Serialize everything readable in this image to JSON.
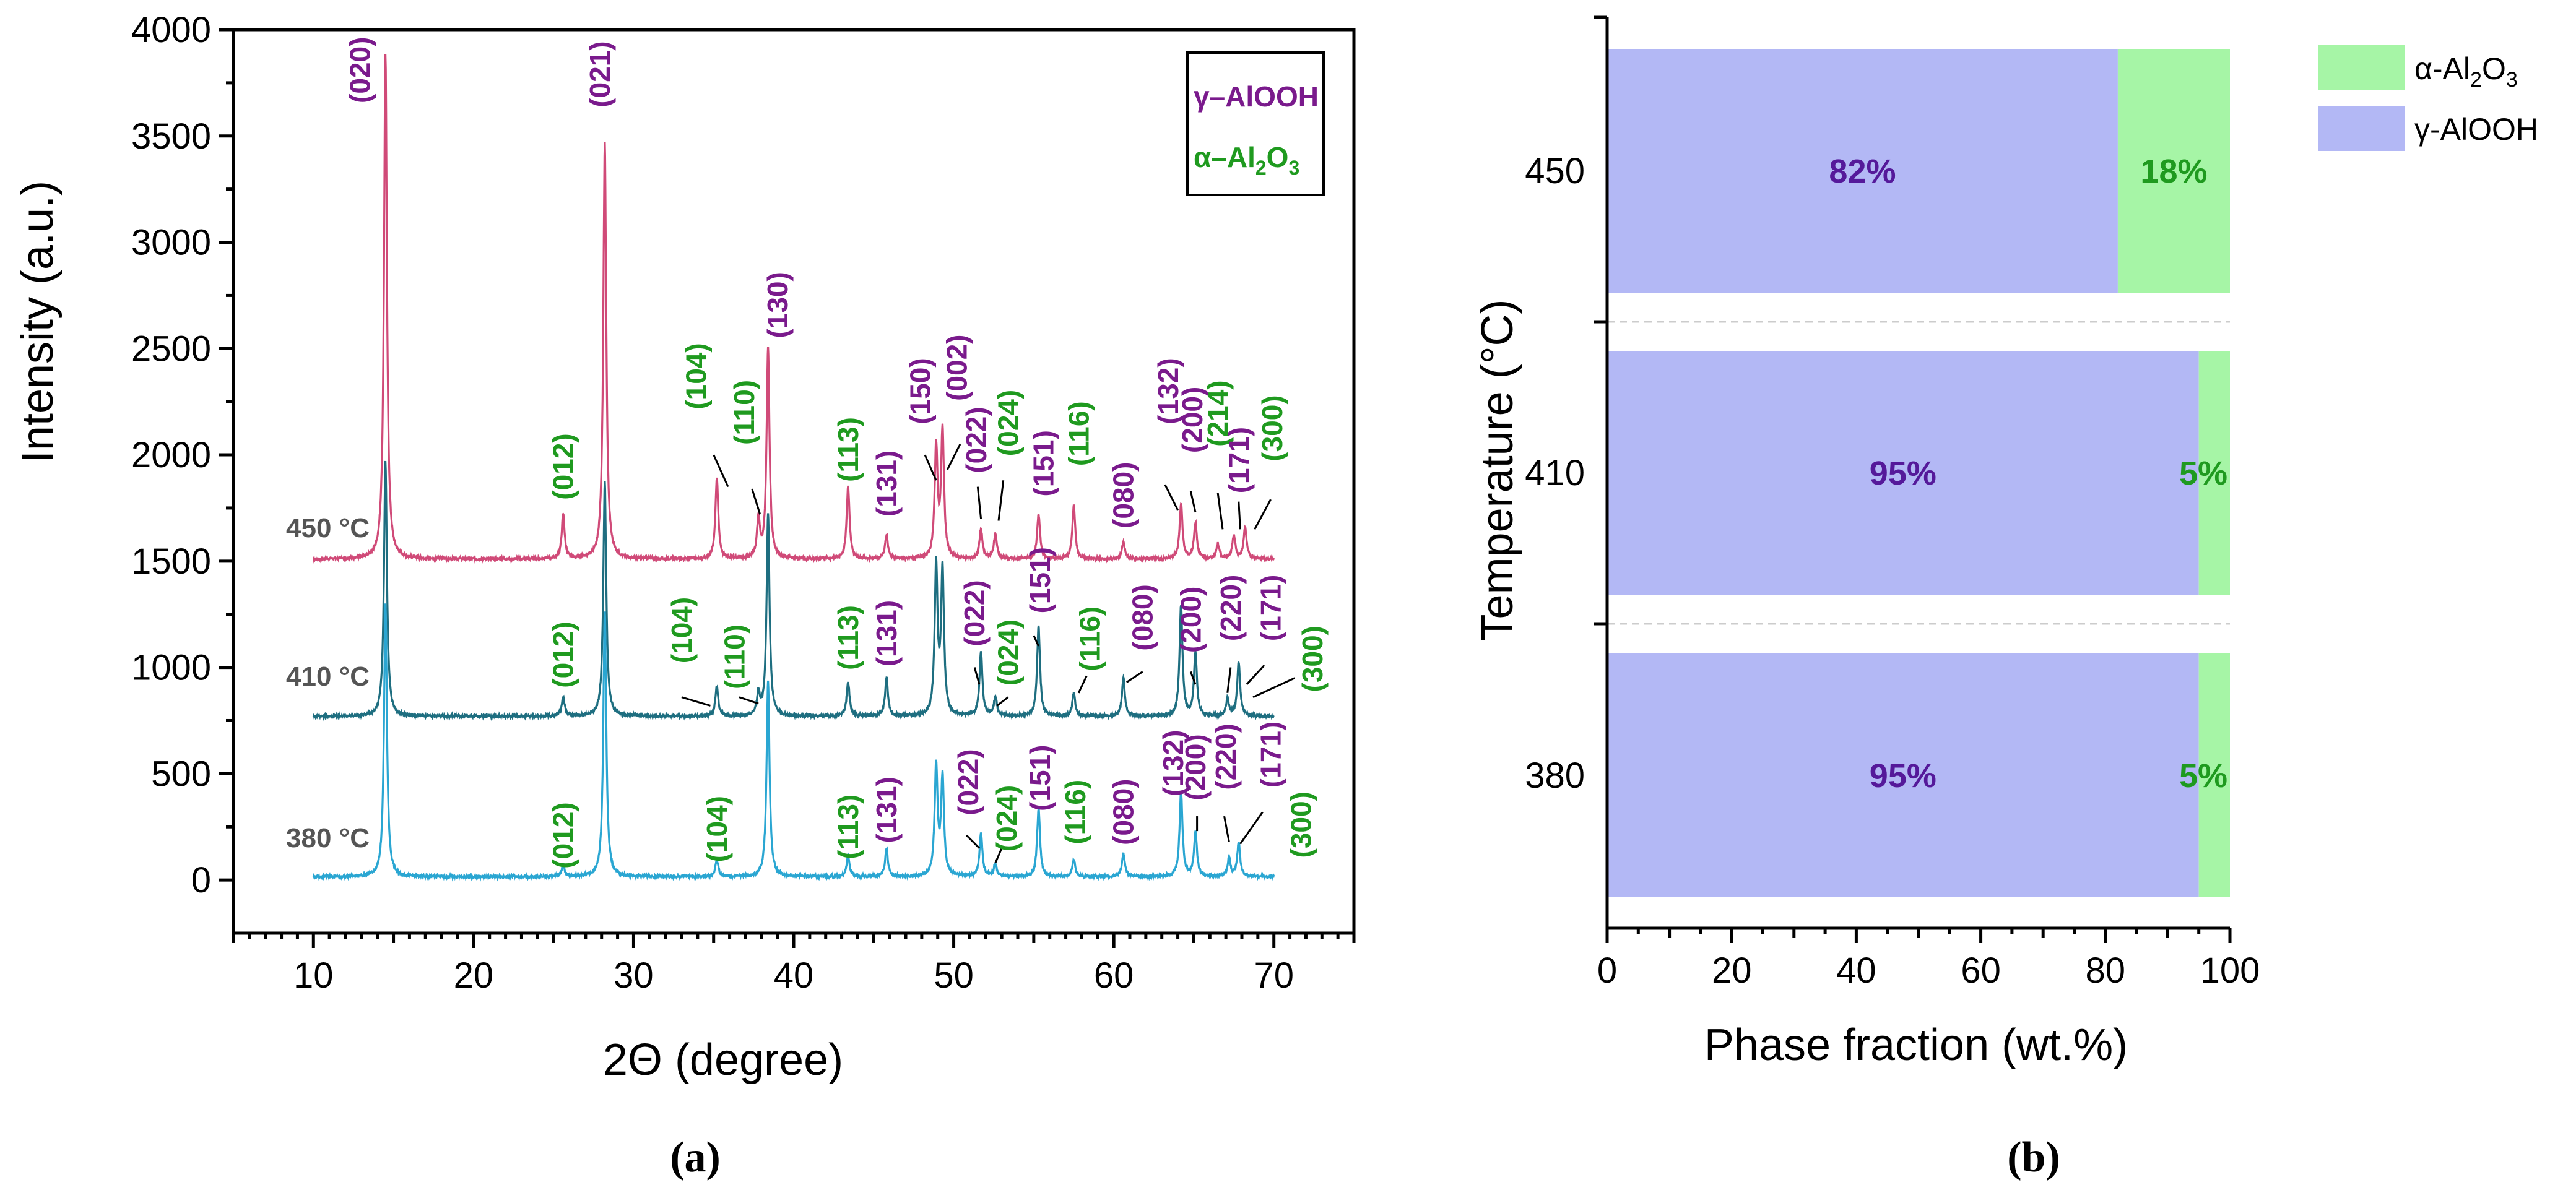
{
  "colors": {
    "gamma": "#7a1a8c",
    "alpha": "#1f9a1f",
    "trace_450": "#d04a78",
    "trace_410": "#1e6e80",
    "trace_380": "#2aa6d2",
    "bar_gamma": "#b3b8f5",
    "bar_alpha": "#a6f5a6",
    "pct_gamma": "#55199a",
    "pct_alpha": "#1f9a1f"
  },
  "panel_a": {
    "panel_label": "(a)",
    "legend": {
      "gamma": "γ–AlOOH",
      "alpha_prefix": "α–Al",
      "alpha_sub1": "2",
      "alpha_mid": "O",
      "alpha_sub2": "3"
    },
    "temp_labels": {
      "t450": "450 °C",
      "t410": "410 °C",
      "t380": "380 °C"
    }
  },
  "panel_b": {
    "panel_label": "(b)",
    "legend": {
      "alpha_prefix": "α-Al",
      "alpha_sub1": "2",
      "alpha_mid": "O",
      "alpha_sub2": "3",
      "gamma": "γ-AlOOH"
    }
  },
  "chart_data": [
    {
      "type": "line",
      "title": "",
      "xlabel": "2Θ (degree)",
      "ylabel": "Intensity (a.u.)",
      "xlim": [
        5,
        75
      ],
      "ylim": [
        -250,
        4000
      ],
      "x_ticks": [
        10,
        20,
        30,
        40,
        50,
        60,
        70
      ],
      "y_ticks": [
        0,
        500,
        1000,
        1500,
        2000,
        2500,
        3000,
        3500,
        4000
      ],
      "grid": false,
      "legend_position": "top-right",
      "x_range": [
        10,
        70
      ],
      "series": [
        {
          "name": "450 °C",
          "baseline": 1510,
          "peaks": [
            [
              14.5,
              2380
            ],
            [
              25.6,
              210
            ],
            [
              28.2,
              1960
            ],
            [
              35.2,
              380
            ],
            [
              37.8,
              180
            ],
            [
              38.4,
              990
            ],
            [
              43.4,
              340
            ],
            [
              45.8,
              110
            ],
            [
              48.9,
              520
            ],
            [
              49.3,
              600
            ],
            [
              51.7,
              140
            ],
            [
              52.6,
              120
            ],
            [
              55.3,
              210
            ],
            [
              57.5,
              250
            ],
            [
              60.6,
              80
            ],
            [
              64.2,
              260
            ],
            [
              65.1,
              170
            ],
            [
              66.5,
              70
            ],
            [
              67.5,
              110
            ],
            [
              68.2,
              150
            ]
          ]
        },
        {
          "name": "410 °C",
          "baseline": 770,
          "peaks": [
            [
              14.5,
              1200
            ],
            [
              25.6,
              90
            ],
            [
              28.2,
              1100
            ],
            [
              35.2,
              140
            ],
            [
              37.8,
              100
            ],
            [
              38.4,
              950
            ],
            [
              43.4,
              160
            ],
            [
              45.8,
              180
            ],
            [
              48.9,
              700
            ],
            [
              49.3,
              680
            ],
            [
              51.7,
              300
            ],
            [
              52.6,
              90
            ],
            [
              55.3,
              420
            ],
            [
              57.5,
              110
            ],
            [
              60.6,
              180
            ],
            [
              64.2,
              520
            ],
            [
              65.1,
              300
            ],
            [
              67.1,
              80
            ],
            [
              67.8,
              250
            ]
          ]
        },
        {
          "name": "380 °C",
          "baseline": 15,
          "peaks": [
            [
              14.5,
              1280
            ],
            [
              25.6,
              55
            ],
            [
              28.2,
              1250
            ],
            [
              35.2,
              80
            ],
            [
              38.4,
              920
            ],
            [
              43.4,
              100
            ],
            [
              45.8,
              130
            ],
            [
              48.9,
              520
            ],
            [
              49.3,
              460
            ],
            [
              51.7,
              200
            ],
            [
              52.6,
              60
            ],
            [
              55.3,
              320
            ],
            [
              57.5,
              80
            ],
            [
              60.6,
              110
            ],
            [
              64.2,
              400
            ],
            [
              65.1,
              210
            ],
            [
              67.2,
              90
            ],
            [
              67.8,
              160
            ]
          ]
        }
      ],
      "annotations": [
        {
          "text": "(020)",
          "phase": "γ-AlOOH"
        },
        {
          "text": "(021)",
          "phase": "γ-AlOOH"
        },
        {
          "text": "(130)",
          "phase": "γ-AlOOH"
        },
        {
          "text": "(150)",
          "phase": "γ-AlOOH"
        },
        {
          "text": "(002)",
          "phase": "γ-AlOOH"
        },
        {
          "text": "(012)",
          "phase": "α-Al2O3"
        },
        {
          "text": "(104)",
          "phase": "α-Al2O3"
        },
        {
          "text": "(110)",
          "phase": "α-Al2O3"
        },
        {
          "text": "(113)",
          "phase": "α-Al2O3"
        },
        {
          "text": "(131)",
          "phase": "γ-AlOOH"
        },
        {
          "text": "(022)",
          "phase": "γ-AlOOH"
        },
        {
          "text": "(024)",
          "phase": "α-Al2O3"
        },
        {
          "text": "(151)",
          "phase": "γ-AlOOH"
        },
        {
          "text": "(116)",
          "phase": "α-Al2O3"
        },
        {
          "text": "(080)",
          "phase": "γ-AlOOH"
        },
        {
          "text": "(132)",
          "phase": "γ-AlOOH"
        },
        {
          "text": "(200)",
          "phase": "γ-AlOOH"
        },
        {
          "text": "(214)",
          "phase": "α-Al2O3"
        },
        {
          "text": "(171)",
          "phase": "γ-AlOOH"
        },
        {
          "text": "(300)",
          "phase": "α-Al2O3"
        },
        {
          "text": "(220)",
          "phase": "γ-AlOOH"
        }
      ]
    },
    {
      "type": "bar",
      "orientation": "horizontal",
      "stacked": true,
      "xlabel": "Phase fraction (wt.%)",
      "ylabel": "Temperature (°C)",
      "xlim": [
        0,
        100
      ],
      "x_ticks": [
        0,
        20,
        40,
        60,
        80,
        100
      ],
      "categories": [
        "450",
        "410",
        "380"
      ],
      "series": [
        {
          "name": "γ-AlOOH",
          "values": [
            82,
            95,
            95
          ],
          "labels": [
            "82%",
            "95%",
            "95%"
          ]
        },
        {
          "name": "α-Al2O3",
          "values": [
            18,
            5,
            5
          ],
          "labels": [
            "18%",
            "5%",
            "5%"
          ]
        }
      ],
      "legend_position": "top-right"
    }
  ]
}
